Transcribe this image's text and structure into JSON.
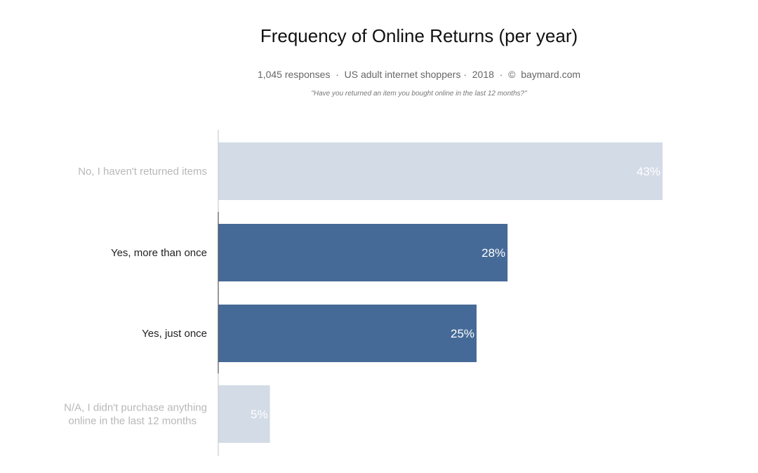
{
  "chart_data": {
    "type": "bar",
    "orientation": "horizontal",
    "title": "Frequency of Online Returns (per year)",
    "subtitle": "1,045 responses  ·  US adult internet shoppers ·  2018  ·  ©  baymard.com",
    "question": "\"Have you returned an item you bought online in the last 12 months?\"",
    "categories": [
      "No, I haven't returned items",
      "Yes, more than once",
      "Yes, just once",
      "N/A, I didn't purchase anything online in the last 12 months"
    ],
    "values": [
      43,
      28,
      25,
      5
    ],
    "data_labels": [
      "43%",
      "28%",
      "25%",
      "5%"
    ],
    "highlighted": [
      false,
      true,
      true,
      false
    ],
    "xlim": [
      0,
      43
    ],
    "grid": false,
    "colors": {
      "highlight": "#466a97",
      "muted": "#d3dbe6",
      "label_highlight": "#222222",
      "label_muted": "#b8b8b8"
    }
  }
}
